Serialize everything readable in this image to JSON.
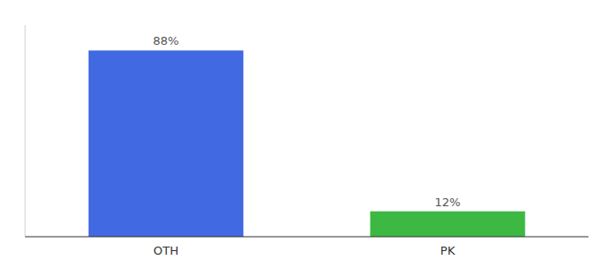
{
  "chart_data": {
    "type": "bar",
    "categories": [
      "OTH",
      "PK"
    ],
    "values": [
      88,
      12
    ],
    "value_labels": [
      "88%",
      "12%"
    ],
    "colors": [
      "#4169e1",
      "#3cb843"
    ],
    "data_labels": true,
    "ylim": [
      0,
      100
    ],
    "tick_labels": "x"
  }
}
